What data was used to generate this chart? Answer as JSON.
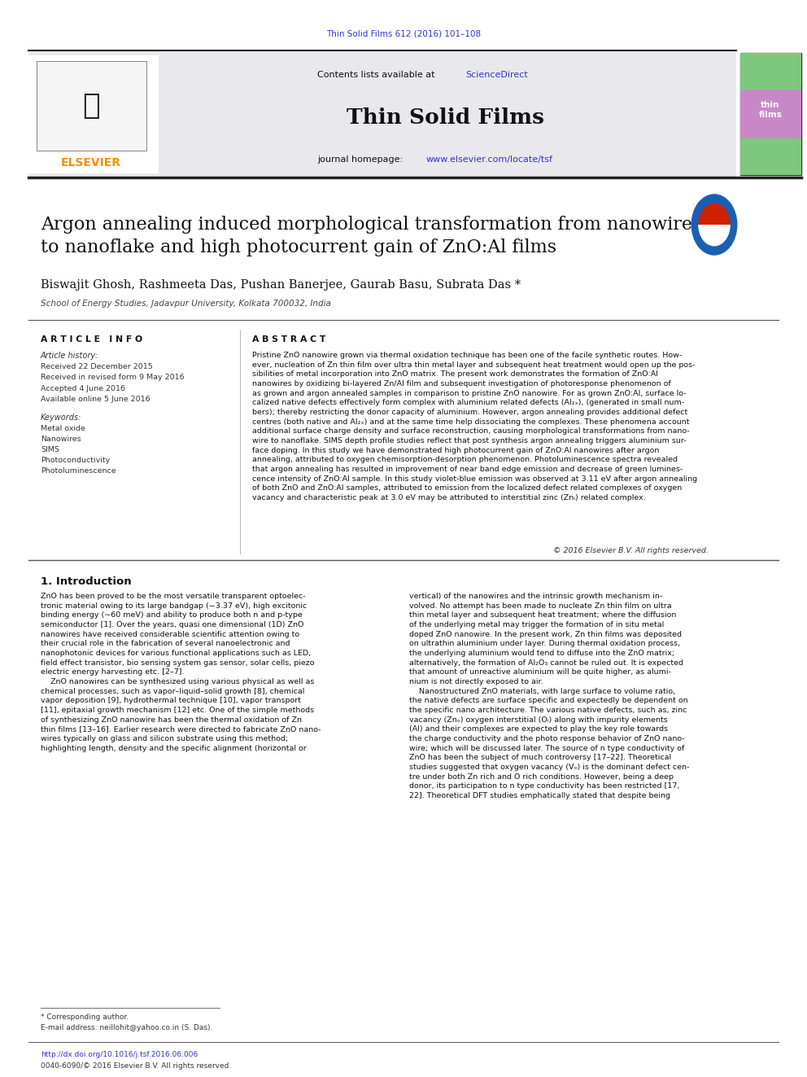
{
  "page_width": 9.92,
  "page_height": 13.23,
  "bg_color": "#ffffff",
  "top_citation": "Thin Solid Films 612 (2016) 101–108",
  "top_citation_color": "#3333cc",
  "journal_title": "Thin Solid Films",
  "sciencedirect_color": "#3333cc",
  "homepage_url": "www.elsevier.com/locate/tsf",
  "homepage_url_color": "#3333cc",
  "elsevier_color": "#FF8C00",
  "header_bg": "#e8e8ed",
  "article_title": "Argon annealing induced morphological transformation from nanowire\nto nanoflake and high photocurrent gain of ZnO:Al films",
  "authors": "Biswajit Ghosh, Rashmeeta Das, Pushan Banerjee, Gaurab Basu, Subrata Das *",
  "affiliation": "School of Energy Studies, Jadavpur University, Kolkata 700032, India",
  "article_info_header": "A R T I C L E   I N F O",
  "abstract_header": "A B S T R A C T",
  "article_history_label": "Article history:",
  "received_label": "Received 22 December 2015",
  "revised_label": "Received in revised form 9 May 2016",
  "accepted_label": "Accepted 4 June 2016",
  "available_label": "Available online 5 June 2016",
  "keywords_label": "Keywords:",
  "keyword1": "Metal oxide",
  "keyword2": "Nanowires",
  "keyword3": "SIMS",
  "keyword4": "Photoconductivity",
  "keyword5": "Photoluminescence",
  "abstract_text": "Pristine ZnO nanowire grown via thermal oxidation technique has been one of the facile synthetic routes. How-\never, nucleation of Zn thin film over ultra thin metal layer and subsequent heat treatment would open up the pos-\nsibilities of metal incorporation into ZnO matrix. The present work demonstrates the formation of ZnO:Al\nnanowires by oxidizing bi-layered Zn/Al film and subsequent investigation of photoresponse phenomenon of\nas grown and argon annealed samples in comparison to pristine ZnO nanowire. For as grown ZnO:Al, surface lo-\ncalized native defects effectively form complex with aluminium related defects (Al₂ₓ), (generated in small num-\nbers); thereby restricting the donor capacity of aluminium. However, argon annealing provides additional defect\ncentres (both native and Al₂ₓ) and at the same time help dissociating the complexes. These phenomena account\nadditional surface charge density and surface reconstruction, causing morphological transformations from nano-\nwire to nanoflake. SIMS depth profile studies reflect that post synthesis argon annealing triggers aluminium sur-\nface doping. In this study we have demonstrated high photocurrent gain of ZnO:Al nanowires after argon\nannealing, attributed to oxygen chemisorption-desorption phenomenon. Photoluminescence spectra revealed\nthat argon annealing has resulted in improvement of near band edge emission and decrease of green lumines-\ncence intensity of ZnO:Al sample. In this study violet-blue emission was observed at 3.11 eV after argon annealing\nof both ZnO and ZnO:Al samples, attributed to emission from the localized defect related complexes of oxygen\nvacancy and characteristic peak at 3.0 eV may be attributed to interstitial zinc (Znᵢ) related complex.",
  "copyright_text": "© 2016 Elsevier B.V. All rights reserved.",
  "intro_header": "1. Introduction",
  "intro_col1": "ZnO has been proved to be the most versatile transparent optoelec-\ntronic material owing to its large bandgap (−3.37 eV), high excitonic\nbinding energy (∼60 meV) and ability to produce both n and p-type\nsemiconductor [1]. Over the years, quasi one dimensional (1D) ZnO\nnanowires have received considerable scientific attention owing to\ntheir crucial role in the fabrication of several nanoelectronic and\nnanophotonic devices for various functional applications such as LED,\nfield effect transistor, bio sensing system gas sensor, solar cells, piezo\nelectric energy harvesting etc. [2–7].\n    ZnO nanowires can be synthesized using various physical as well as\nchemical processes, such as vapor–liquid–solid growth [8], chemical\nvapor deposition [9], hydrothermal technique [10], vapor transport\n[11], epitaxial growth mechanism [12] etc. One of the simple methods\nof synthesizing ZnO nanowire has been the thermal oxidation of Zn\nthin films [13–16]. Earlier research were directed to fabricate ZnO nano-\nwires typically on glass and silicon substrate using this method;\nhighlighting length, density and the specific alignment (horizontal or",
  "intro_col2": "vertical) of the nanowires and the intrinsic growth mechanism in-\nvolved. No attempt has been made to nucleate Zn thin film on ultra\nthin metal layer and subsequent heat treatment; where the diffusion\nof the underlying metal may trigger the formation of in situ metal\ndoped ZnO nanowire. In the present work, Zn thin films was deposited\non ultrathin aluminium under layer. During thermal oxidation process,\nthe underlying aluminium would tend to diffuse into the ZnO matrix;\nalternatively, the formation of Al₂O₃ cannot be ruled out. It is expected\nthat amount of unreactive aluminium will be quite higher, as alumi-\nnium is not directly exposed to air.\n    Nanostructured ZnO materials, with large surface to volume ratio,\nthe native defects are surface specific and expectedly be dependent on\nthe specific nano architecture. The various native defects, such as, zinc\nvacancy (Znₒ) oxygen interstitial (Oᵢ) along with impurity elements\n(Al) and their complexes are expected to play the key role towards\nthe charge conductivity and the photo response behavior of ZnO nano-\nwire; which will be discussed later. The source of n type conductivity of\nZnO has been the subject of much controversy [17–22]. Theoretical\nstudies suggested that oxygen vacancy (Vₒ) is the dominant defect cen-\ntre under both Zn rich and O rich conditions. However, being a deep\ndonor, its participation to n type conductivity has been restricted [17,\n22]. Theoretical DFT studies emphatically stated that despite being",
  "footnote_corr": "* Corresponding author.",
  "footnote_email": "E-mail address: neillohit@yahoo.co.in (S. Das).",
  "doi_text": "http://dx.doi.org/10.1016/j.tsf.2016.06.006",
  "doi_color": "#3333cc",
  "issn_text": "0040-6090/© 2016 Elsevier B.V. All rights reserved."
}
